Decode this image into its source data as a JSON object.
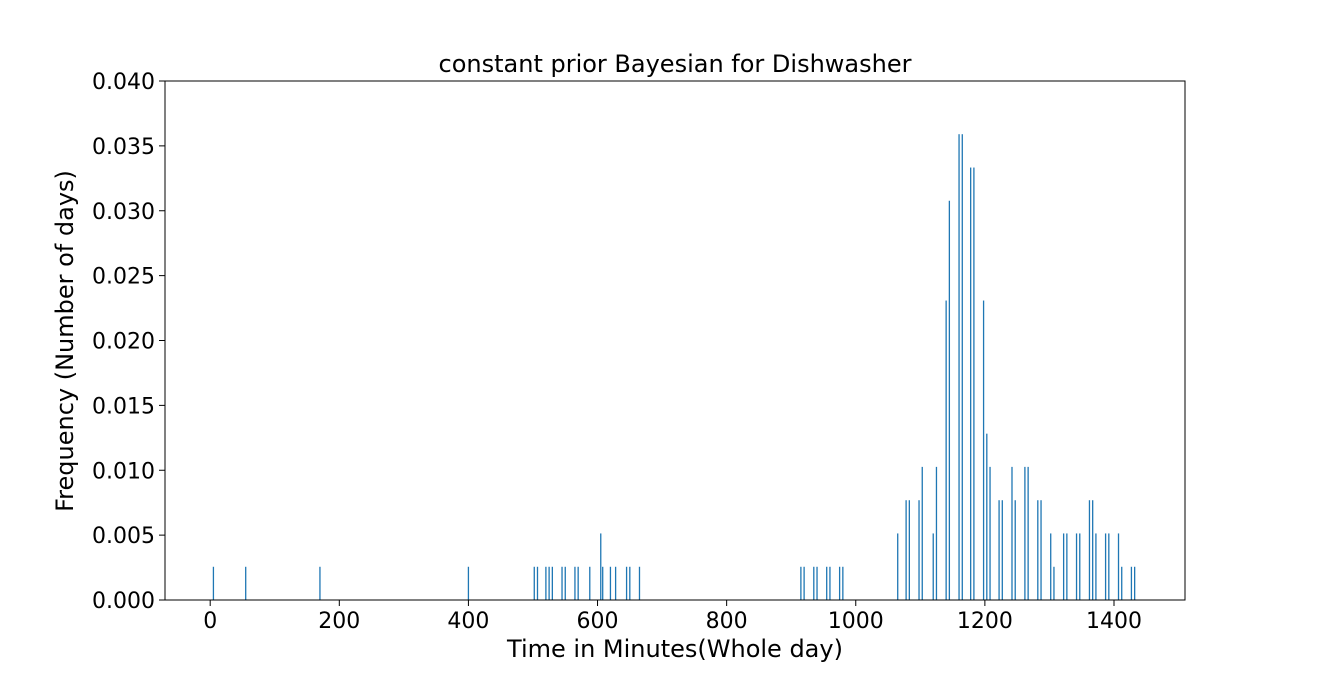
{
  "chart_data": {
    "type": "bar",
    "title": "constant prior Bayesian for Dishwasher",
    "xlabel": "Time in Minutes(Whole day)",
    "ylabel": "Frequency (Number of days)",
    "xlim": [
      -70,
      1510
    ],
    "ylim": [
      0,
      0.04
    ],
    "xticks": [
      "0",
      "200",
      "400",
      "600",
      "800",
      "1000",
      "1200",
      "1400"
    ],
    "yticks": [
      "0.000",
      "0.005",
      "0.010",
      "0.015",
      "0.020",
      "0.025",
      "0.030",
      "0.035",
      "0.040"
    ],
    "grid": false,
    "bar_color": "#1f77b4",
    "x": [
      5,
      55,
      170,
      400,
      502,
      507,
      520,
      525,
      530,
      545,
      550,
      565,
      570,
      588,
      605,
      608,
      620,
      628,
      645,
      650,
      665,
      915,
      920,
      935,
      940,
      955,
      960,
      975,
      980,
      1065,
      1078,
      1083,
      1098,
      1103,
      1120,
      1125,
      1140,
      1145,
      1160,
      1165,
      1178,
      1183,
      1198,
      1203,
      1208,
      1222,
      1227,
      1242,
      1247,
      1262,
      1267,
      1282,
      1287,
      1302,
      1307,
      1322,
      1327,
      1342,
      1347,
      1362,
      1367,
      1372,
      1387,
      1392,
      1407,
      1412,
      1427,
      1432
    ],
    "values": [
      0.00256,
      0.00256,
      0.00256,
      0.00256,
      0.00256,
      0.00256,
      0.00256,
      0.00256,
      0.00256,
      0.00256,
      0.00256,
      0.00256,
      0.00256,
      0.00256,
      0.00513,
      0.00256,
      0.00256,
      0.00256,
      0.00256,
      0.00256,
      0.00256,
      0.00256,
      0.00256,
      0.00256,
      0.00256,
      0.00256,
      0.00256,
      0.00256,
      0.00256,
      0.00513,
      0.00769,
      0.00769,
      0.00769,
      0.01026,
      0.00513,
      0.01026,
      0.02308,
      0.03077,
      0.0359,
      0.0359,
      0.03333,
      0.03333,
      0.02308,
      0.01282,
      0.01026,
      0.00769,
      0.00769,
      0.01026,
      0.00769,
      0.01026,
      0.01026,
      0.00769,
      0.00769,
      0.00513,
      0.00256,
      0.00513,
      0.00513,
      0.00513,
      0.00513,
      0.00769,
      0.00769,
      0.00513,
      0.00513,
      0.00513,
      0.00513,
      0.00256,
      0.00256,
      0.00256
    ]
  }
}
